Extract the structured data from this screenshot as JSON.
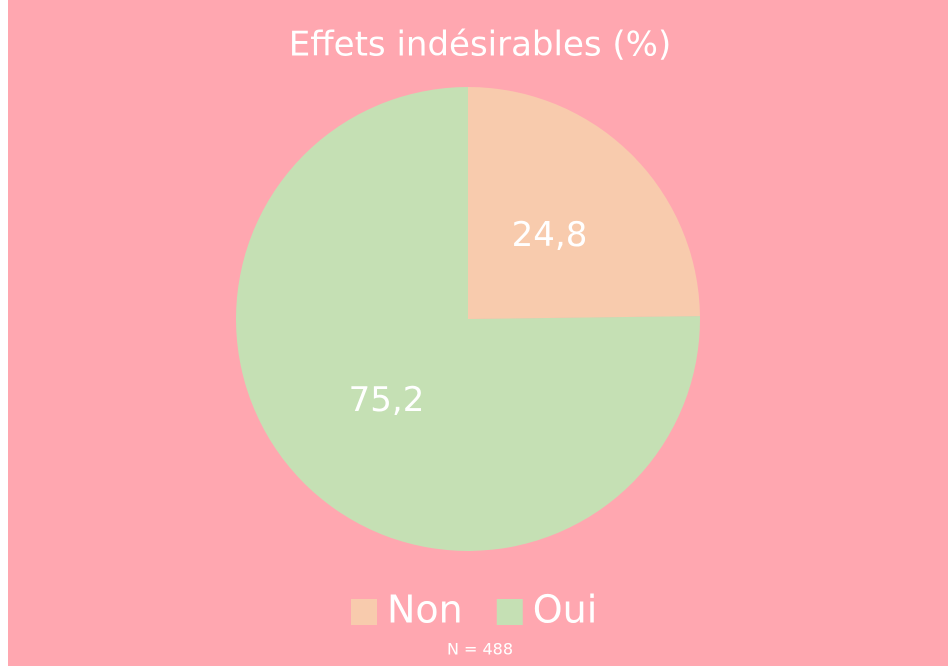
{
  "chart_data": {
    "type": "pie",
    "title": "Effets indésirables (%)",
    "categories": [
      "Non",
      "Oui"
    ],
    "values": [
      24.8,
      75.2
    ],
    "value_labels": [
      "24,8",
      "75,2"
    ],
    "colors": [
      "#f8cbad",
      "#c5e0b4"
    ],
    "legend": "bottom",
    "annotation": "N = 488"
  }
}
